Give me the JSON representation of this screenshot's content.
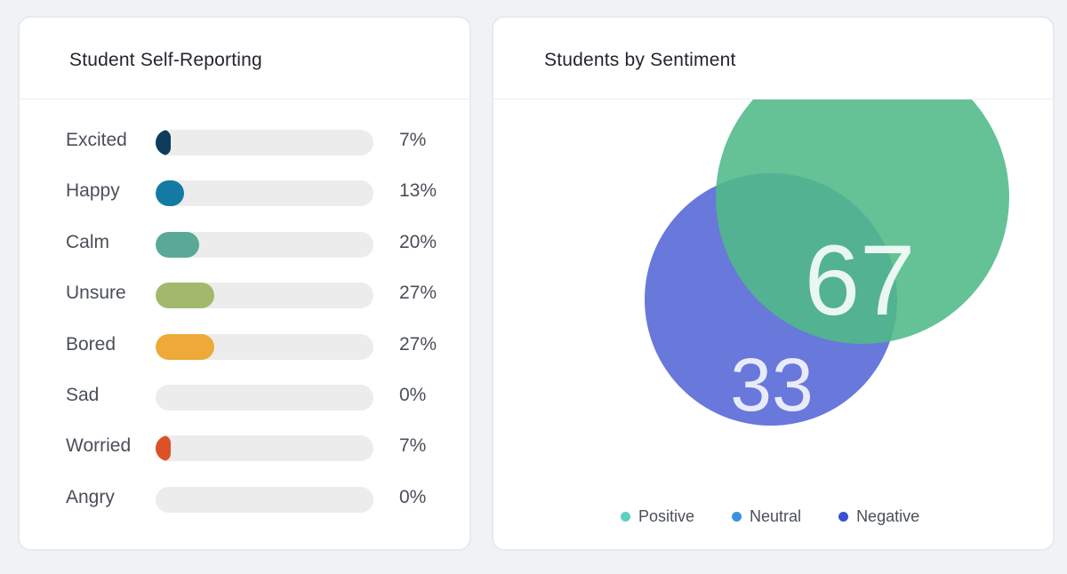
{
  "self_reporting": {
    "title": "Student Self-Reporting"
  },
  "sentiment": {
    "title": "Students by Sentiment",
    "legend": [
      {
        "label": "Positive",
        "color": "#5fd0c0"
      },
      {
        "label": "Neutral",
        "color": "#3d8ee0"
      },
      {
        "label": "Negative",
        "color": "#3d4fd0"
      }
    ]
  },
  "chart_data": [
    {
      "type": "bar",
      "orientation": "horizontal",
      "title": "Student Self-Reporting",
      "categories": [
        "Excited",
        "Happy",
        "Calm",
        "Unsure",
        "Bored",
        "Sad",
        "Worried",
        "Angry"
      ],
      "values": [
        7,
        13,
        20,
        27,
        27,
        0,
        7,
        0
      ],
      "value_labels": [
        "7%",
        "13%",
        "20%",
        "27%",
        "27%",
        "0%",
        "7%",
        "0%"
      ],
      "colors": [
        "#0f3b5c",
        "#137aa3",
        "#5aa898",
        "#a2b96c",
        "#eeaa38",
        "#cccccc",
        "#dd5126",
        "#cccccc"
      ],
      "xlim": [
        0,
        100
      ]
    },
    {
      "type": "venn",
      "title": "Students by Sentiment",
      "series": [
        {
          "label": "67",
          "value": 67,
          "color": "#4fb988"
        },
        {
          "label": "33",
          "value": 33,
          "color": "#5b6dd8"
        }
      ]
    }
  ]
}
